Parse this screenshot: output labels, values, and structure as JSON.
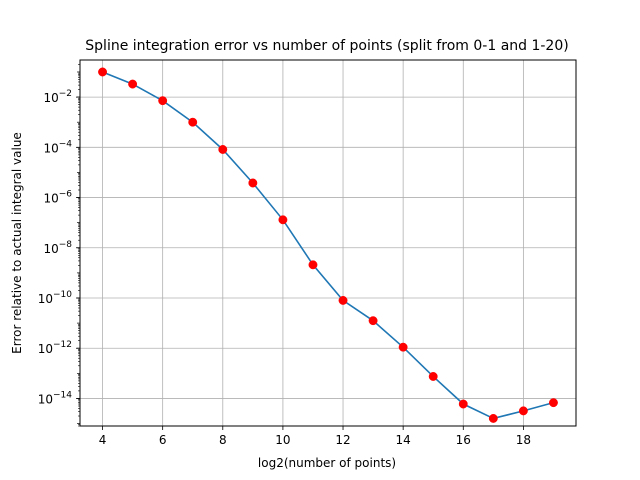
{
  "chart_data": {
    "type": "line",
    "title": "Spline integration error vs number of points (split from 0-1 and 1-20)",
    "xlabel": "log2(number of points)",
    "ylabel": "Error relative to actual integral value",
    "x_ticks": [
      "4",
      "6",
      "8",
      "10",
      "12",
      "14",
      "16",
      "18"
    ],
    "y_ticks": [
      {
        "base": "10",
        "exp": "−14",
        "value": 1e-14
      },
      {
        "base": "10",
        "exp": "−12",
        "value": 1e-12
      },
      {
        "base": "10",
        "exp": "−10",
        "value": 1e-10
      },
      {
        "base": "10",
        "exp": "−8",
        "value": 1e-08
      },
      {
        "base": "10",
        "exp": "−6",
        "value": 1e-06
      },
      {
        "base": "10",
        "exp": "−4",
        "value": 0.0001
      },
      {
        "base": "10",
        "exp": "−2",
        "value": 0.01
      }
    ],
    "xlim": [
      3.25,
      19.75
    ],
    "ylim": [
      8e-16,
      0.3
    ],
    "yscale": "log",
    "grid": true,
    "series": [
      {
        "x": [
          4,
          5,
          6,
          7,
          8,
          9,
          10,
          11,
          12,
          13,
          14,
          15,
          16,
          17,
          18,
          19
        ],
        "values": [
          0.1,
          0.033,
          0.0072,
          0.001,
          8.2e-05,
          3.8e-06,
          1.3e-07,
          2.1e-09,
          8e-11,
          1.25e-11,
          1.1e-12,
          7.5e-14,
          6e-15,
          1.6e-15,
          3.2e-15,
          6.8e-15
        ],
        "line_color": "#1f77b4",
        "marker_color": "#ff0000"
      }
    ]
  }
}
